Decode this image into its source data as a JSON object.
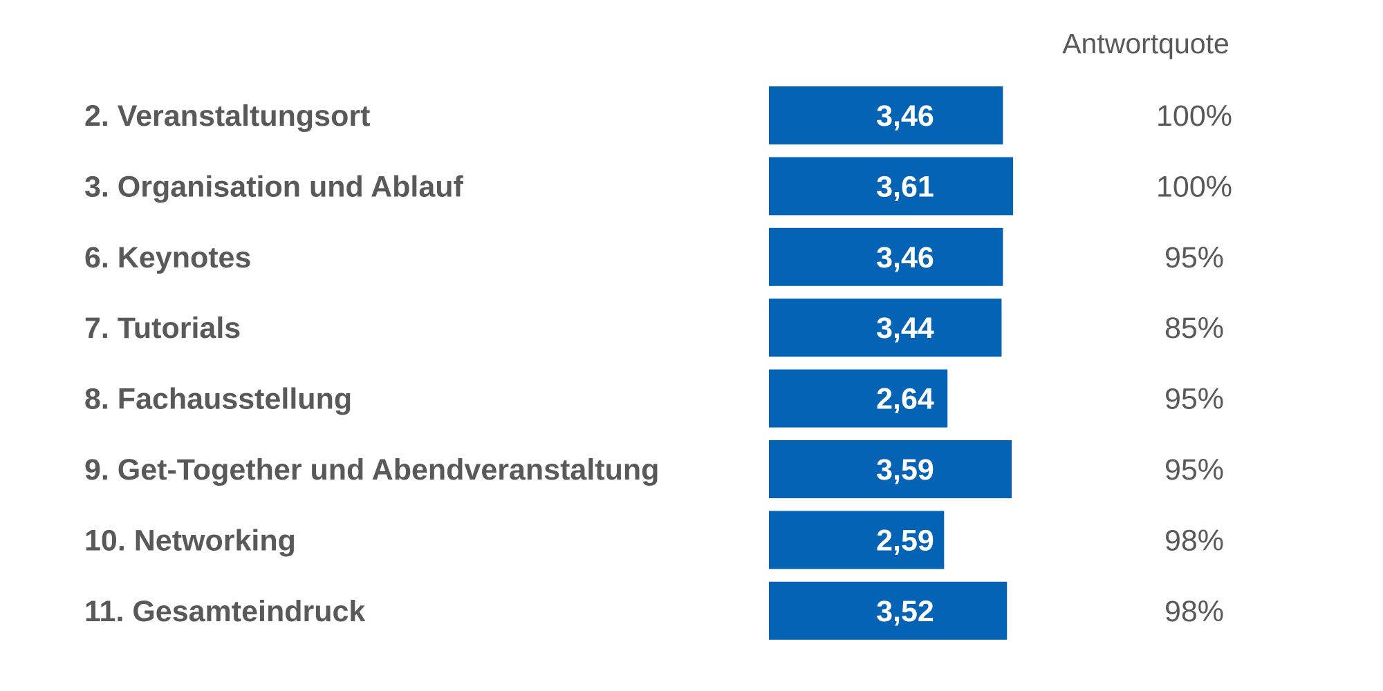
{
  "chart_data": {
    "type": "bar",
    "orientation": "horizontal",
    "categories": [
      "2. Veranstaltungsort",
      "3. Organisation und Ablauf",
      "6. Keynotes",
      "7. Tutorials",
      "8. Fachausstellung",
      "9. Get-Together und Abendveranstaltung",
      "10. Networking",
      "11. Gesamteindruck"
    ],
    "values": [
      3.46,
      3.61,
      3.46,
      3.44,
      2.64,
      3.59,
      2.59,
      3.52
    ],
    "value_labels": [
      "3,46",
      "3,61",
      "3,46",
      "3,44",
      "2,64",
      "3,59",
      "2,59",
      "3,52"
    ],
    "response_rate_header": "Antwortquote",
    "response_rates": [
      "100%",
      "100%",
      "95%",
      "85%",
      "95%",
      "95%",
      "98%",
      "98%"
    ],
    "bar_color": "#0563B6",
    "text_color": "#595959",
    "grid": false,
    "legend": "none"
  }
}
